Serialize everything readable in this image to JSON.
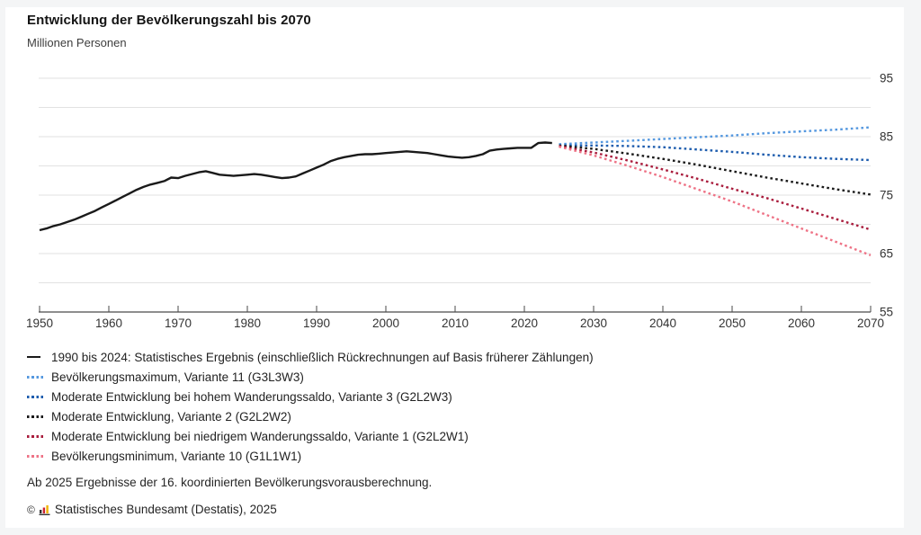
{
  "page": {
    "background": "#f4f5f6",
    "card_background": "#ffffff"
  },
  "header": {
    "title": "Entwicklung der Bevölkerungszahl bis 2070",
    "subtitle": "Millionen Personen"
  },
  "chart_data": {
    "type": "line",
    "title": "Entwicklung der Bevölkerungszahl bis 2070",
    "ylabel": "Millionen Personen",
    "xlabel": "",
    "xlim": [
      1950,
      2070
    ],
    "ylim": [
      55,
      95
    ],
    "grid": true,
    "legend_position": "bottom",
    "x_ticks": [
      1950,
      1960,
      1970,
      1980,
      1990,
      2000,
      2010,
      2020,
      2030,
      2040,
      2050,
      2060,
      2070
    ],
    "y_gridlines": [
      60,
      65,
      70,
      75,
      80,
      85,
      90,
      95
    ],
    "y_tick_labels": [
      95,
      85,
      75,
      65,
      55
    ],
    "colors": {
      "historical": "#1a1a1a",
      "grid": "#e2e2e2",
      "axis": "#4a4a4a",
      "tick_text": "#333333"
    },
    "series": [
      {
        "name": "1990 bis 2024: Statistisches Ergebnis (einschließlich Rückrechnungen auf Basis früherer Zählungen)",
        "style": "solid",
        "color": "#1a1a1a",
        "x_start": 1950,
        "x_step": 1,
        "values": [
          69.0,
          69.3,
          69.7,
          70.0,
          70.4,
          70.8,
          71.3,
          71.8,
          72.3,
          72.9,
          73.5,
          74.1,
          74.7,
          75.3,
          75.9,
          76.4,
          76.8,
          77.1,
          77.4,
          78.0,
          77.9,
          78.3,
          78.6,
          78.9,
          79.1,
          78.8,
          78.5,
          78.4,
          78.3,
          78.4,
          78.5,
          78.6,
          78.5,
          78.3,
          78.1,
          77.9,
          78.0,
          78.2,
          78.7,
          79.2,
          79.7,
          80.2,
          80.8,
          81.2,
          81.5,
          81.7,
          81.9,
          82.0,
          82.0,
          82.1,
          82.2,
          82.3,
          82.4,
          82.5,
          82.4,
          82.3,
          82.2,
          82.0,
          81.8,
          81.6,
          81.5,
          81.4,
          81.5,
          81.7,
          82.0,
          82.6,
          82.8,
          82.9,
          83.0,
          83.1,
          83.1,
          83.1,
          83.9,
          84.0,
          83.9
        ]
      },
      {
        "name": "Bevölkerungsmaximum, Variante 11 (G3L3W3)",
        "style": "dotted",
        "color": "#5598df",
        "x_start": 2025,
        "x_step": 5,
        "values": [
          83.7,
          84.0,
          84.3,
          84.6,
          84.9,
          85.2,
          85.6,
          85.9,
          86.2,
          86.6
        ]
      },
      {
        "name": "Moderate Entwicklung bei hohem Wanderungssaldo, Variante 3 (G2L2W3)",
        "style": "dotted",
        "color": "#1e5dae",
        "x_start": 2025,
        "x_step": 5,
        "values": [
          83.5,
          83.5,
          83.4,
          83.2,
          82.8,
          82.4,
          81.9,
          81.5,
          81.2,
          81.0
        ]
      },
      {
        "name": "Moderate Entwicklung, Variante 2 (G2L2W2)",
        "style": "dotted",
        "color": "#1a1a1a",
        "x_start": 2025,
        "x_step": 5,
        "values": [
          83.5,
          82.9,
          82.1,
          81.2,
          80.2,
          79.1,
          78.0,
          77.0,
          76.0,
          75.1
        ]
      },
      {
        "name": "Moderate Entwicklung bei niedrigem Wanderungssaldo, Variante 1 (G2L2W1)",
        "style": "dotted",
        "color": "#a91d3d",
        "x_start": 2025,
        "x_step": 5,
        "values": [
          83.4,
          82.3,
          80.9,
          79.4,
          77.8,
          76.1,
          74.5,
          72.7,
          70.9,
          69.1
        ]
      },
      {
        "name": "Bevölkerungsminimum, Variante 10 (G1L1W1)",
        "style": "dotted",
        "color": "#ee7386",
        "x_start": 2025,
        "x_step": 5,
        "values": [
          83.3,
          81.8,
          80.0,
          78.1,
          76.0,
          73.9,
          71.6,
          69.3,
          67.0,
          64.7
        ]
      }
    ]
  },
  "footnotes": {
    "note": "Ab 2025 Ergebnisse der 16. koordinierten Bevölkerungsvorausberechnung.",
    "copyright_symbol": "©",
    "source": "Statistisches Bundesamt (Destatis), 2025",
    "logo_icon": "destatis-bars-icon",
    "logo_colors": [
      "#333333",
      "#cc2233",
      "#f0b400"
    ]
  }
}
